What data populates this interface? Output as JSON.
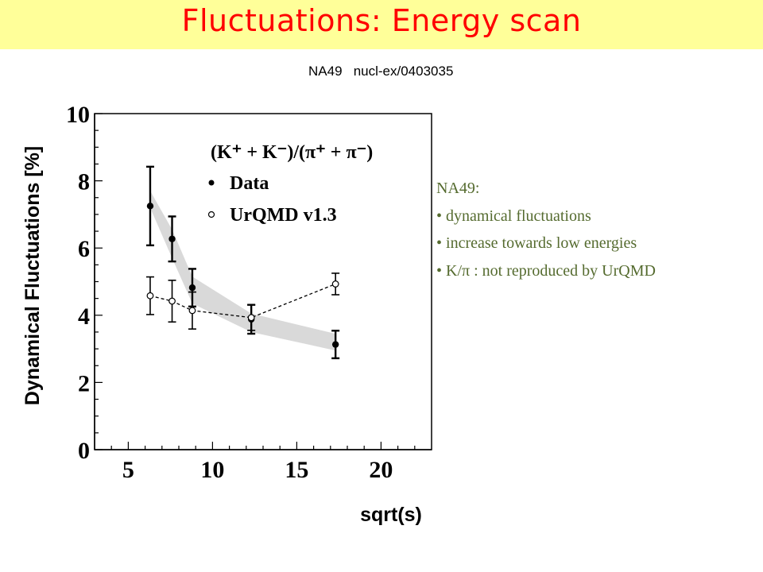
{
  "slide": {
    "title": "Fluctuations: Energy scan",
    "subtitle": "NA49   nucl-ex/0403035",
    "colors": {
      "title": "#ff0000",
      "title_bg": "#ffff99",
      "notes_text": "#556b2f",
      "band": "#d9d9d9"
    }
  },
  "notes": {
    "heading": "NA49:",
    "bullets": [
      "dynamical fluctuations",
      "increase towards low energies",
      "K/π : not reproduced by UrQMD"
    ]
  },
  "chart_data": {
    "type": "scatter",
    "xlabel": "sqrt(s)",
    "ylabel": "Dynamical Fluctuations [%]",
    "annotation": "(K⁺ + K⁻)/(π⁺ + π⁻)",
    "xlim": [
      3,
      23
    ],
    "ylim": [
      0,
      10
    ],
    "xticks": [
      5,
      10,
      15,
      20
    ],
    "yticks": [
      0,
      2,
      4,
      6,
      8,
      10
    ],
    "legend_placement": "top-right",
    "series": [
      {
        "name": "Data",
        "marker": "filled-circle",
        "points": [
          {
            "x": 6.3,
            "y": 7.25,
            "err": 1.17
          },
          {
            "x": 7.6,
            "y": 6.27,
            "err": 0.67
          },
          {
            "x": 8.8,
            "y": 4.82,
            "err": 0.56
          },
          {
            "x": 12.3,
            "y": 3.88,
            "err": 0.43
          },
          {
            "x": 17.3,
            "y": 3.13,
            "err": 0.41
          }
        ]
      },
      {
        "name": "UrQMD v1.3",
        "marker": "open-circle",
        "line": "dashed",
        "points": [
          {
            "x": 6.3,
            "y": 4.58,
            "err": 0.56
          },
          {
            "x": 7.6,
            "y": 4.42,
            "err": 0.62
          },
          {
            "x": 8.8,
            "y": 4.14,
            "err": 0.55
          },
          {
            "x": 12.3,
            "y": 3.93,
            "err": 0.38
          },
          {
            "x": 17.3,
            "y": 4.93,
            "err": 0.32
          }
        ]
      }
    ],
    "systematic_band": {
      "x": [
        6.3,
        7.6,
        8.8,
        12.3,
        17.3
      ],
      "low": [
        7.2,
        5.7,
        4.35,
        3.5,
        2.95
      ],
      "high": [
        7.7,
        6.55,
        5.15,
        4.05,
        3.45
      ]
    }
  }
}
